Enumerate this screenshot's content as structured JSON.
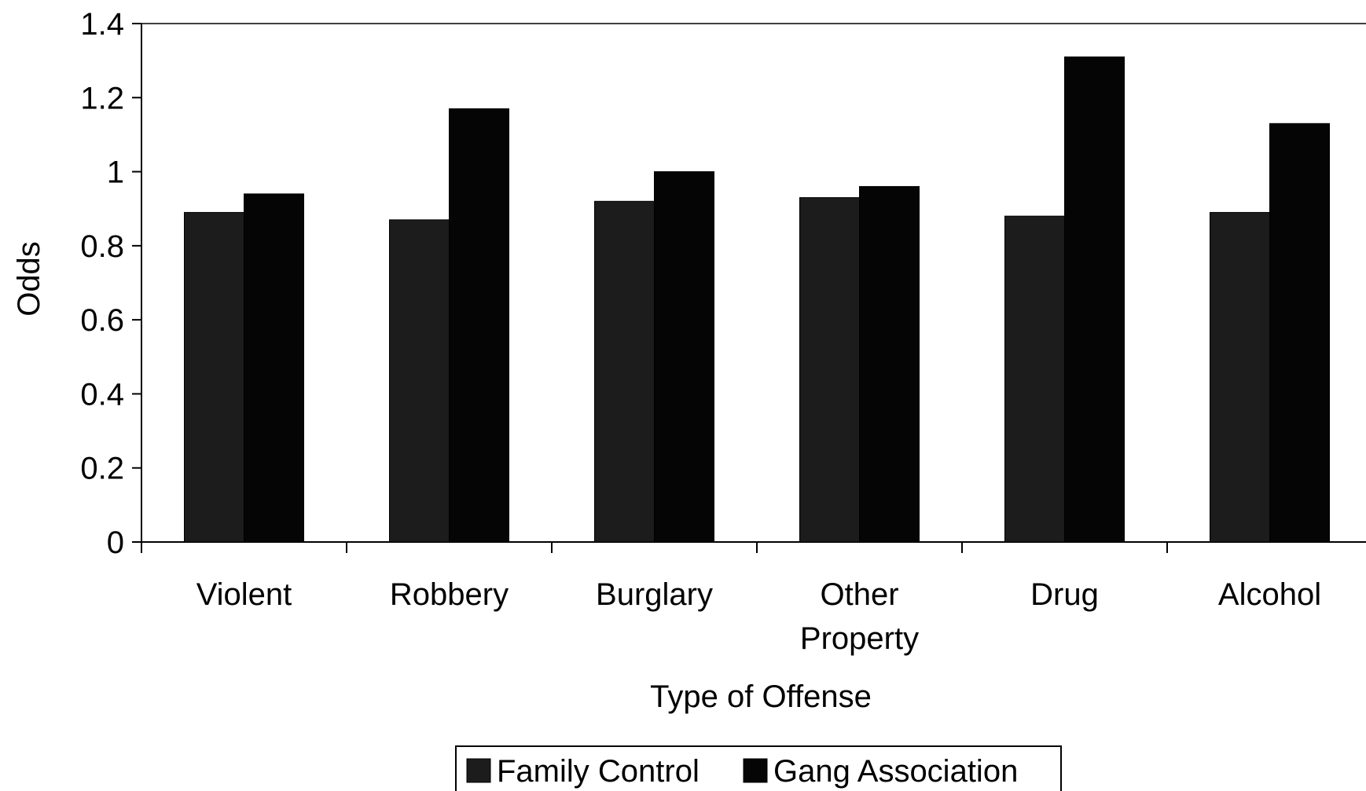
{
  "chart_data": {
    "type": "bar",
    "title": "",
    "xlabel": "Type of Offense",
    "ylabel": "Odds",
    "ylim": [
      0,
      1.4
    ],
    "yticks": [
      "0",
      "0.2",
      "0.4",
      "0.6",
      "0.8",
      "1",
      "1.2",
      "1.4"
    ],
    "categories": [
      [
        "Violent"
      ],
      [
        "Robbery"
      ],
      [
        "Burglary"
      ],
      [
        "Other",
        "Property"
      ],
      [
        "Drug"
      ],
      [
        "Alcohol"
      ]
    ],
    "series": [
      {
        "name": "Family Control",
        "color": "#1c1c1c",
        "values": [
          0.89,
          0.87,
          0.92,
          0.93,
          0.88,
          0.89
        ]
      },
      {
        "name": "Gang Association",
        "color": "#050505",
        "values": [
          0.94,
          1.17,
          1.0,
          0.96,
          1.31,
          1.13
        ]
      }
    ],
    "grid": false,
    "legend_position": "bottom-center"
  }
}
